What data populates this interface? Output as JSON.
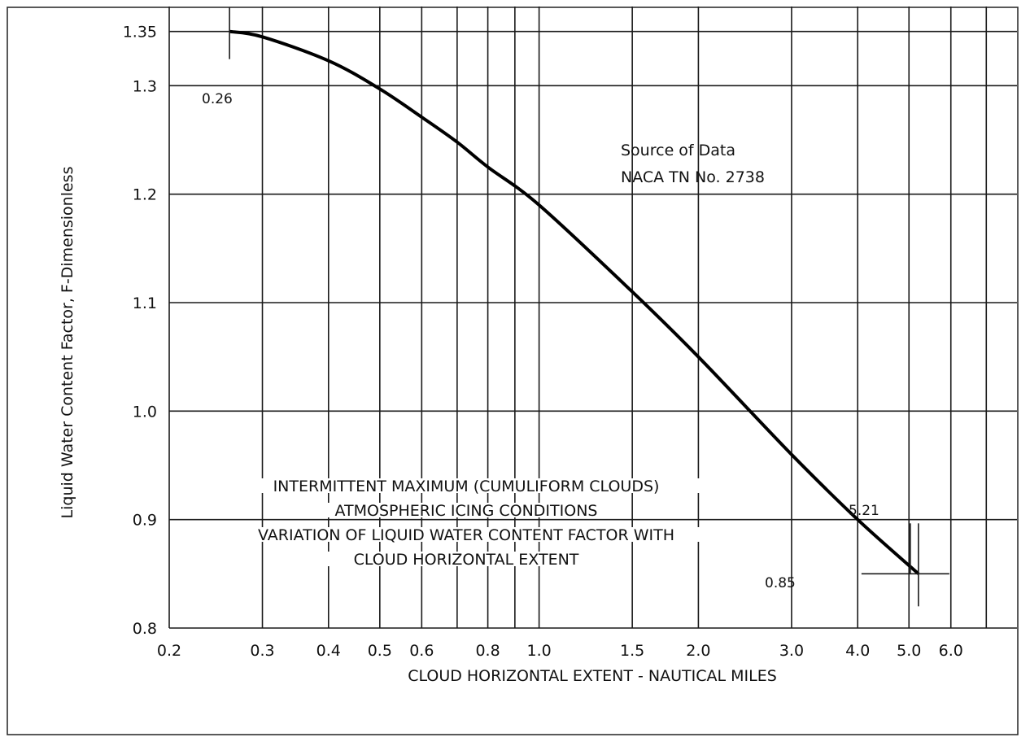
{
  "chart_data": {
    "type": "line",
    "title": "",
    "xlabel": "CLOUD HORIZONTAL EXTENT - NAUTICAL MILES",
    "ylabel": "Liquid Water Content Factor, F-Dimensionless",
    "x_scale": "log",
    "xlim": [
      0.2,
      8
    ],
    "ylim": [
      0.8,
      1.37
    ],
    "grid": true,
    "x_ticks": [
      {
        "value": 0.2,
        "label": "0.2"
      },
      {
        "value": 0.3,
        "label": "0.3"
      },
      {
        "value": 0.4,
        "label": "0.4"
      },
      {
        "value": 0.5,
        "label": "0.5"
      },
      {
        "value": 0.6,
        "label": "0.6"
      },
      {
        "value": 0.8,
        "label": "0.8"
      },
      {
        "value": 1.0,
        "label": "1.0"
      },
      {
        "value": 1.5,
        "label": "1.5"
      },
      {
        "value": 2.0,
        "label": "2.0"
      },
      {
        "value": 3.0,
        "label": "3.0"
      },
      {
        "value": 4.0,
        "label": "4.0"
      },
      {
        "value": 5.0,
        "label": "5.0"
      },
      {
        "value": 6.0,
        "label": "6.0"
      }
    ],
    "x_gridlines": [
      0.3,
      0.4,
      0.5,
      0.6,
      0.7,
      0.8,
      0.9,
      1.0,
      1.5,
      2.0,
      3.0,
      4.0,
      5.0,
      6.0,
      7.0
    ],
    "y_ticks": [
      {
        "value": 1.35,
        "label": "1.35"
      },
      {
        "value": 1.3,
        "label": "1.3"
      },
      {
        "value": 1.2,
        "label": "1.2"
      },
      {
        "value": 1.1,
        "label": "1.1"
      },
      {
        "value": 1.0,
        "label": "1.0"
      },
      {
        "value": 0.9,
        "label": "0.9"
      },
      {
        "value": 0.8,
        "label": "0.8"
      }
    ],
    "series": [
      {
        "x": [
          0.26,
          0.3,
          0.4,
          0.5,
          0.6,
          0.7,
          0.8,
          1.0,
          1.5,
          2.0,
          3.0,
          4.0,
          5.21
        ],
        "y": [
          1.35,
          1.345,
          1.323,
          1.297,
          1.271,
          1.248,
          1.225,
          1.19,
          1.11,
          1.05,
          0.96,
          0.9,
          0.85
        ]
      }
    ],
    "annotations": {
      "source_line1": "Source of Data",
      "source_line2": "NACA TN No. 2738",
      "start_x_label": "0.26",
      "end_x_label": "5.21",
      "end_y_label": "0.85",
      "caption": [
        "INTERMITTENT MAXIMUM (CUMULIFORM CLOUDS)",
        "ATMOSPHERIC ICING CONDITIONS",
        "VARIATION OF LIQUID WATER CONTENT FACTOR WITH",
        "CLOUD HORIZONTAL EXTENT"
      ]
    }
  }
}
